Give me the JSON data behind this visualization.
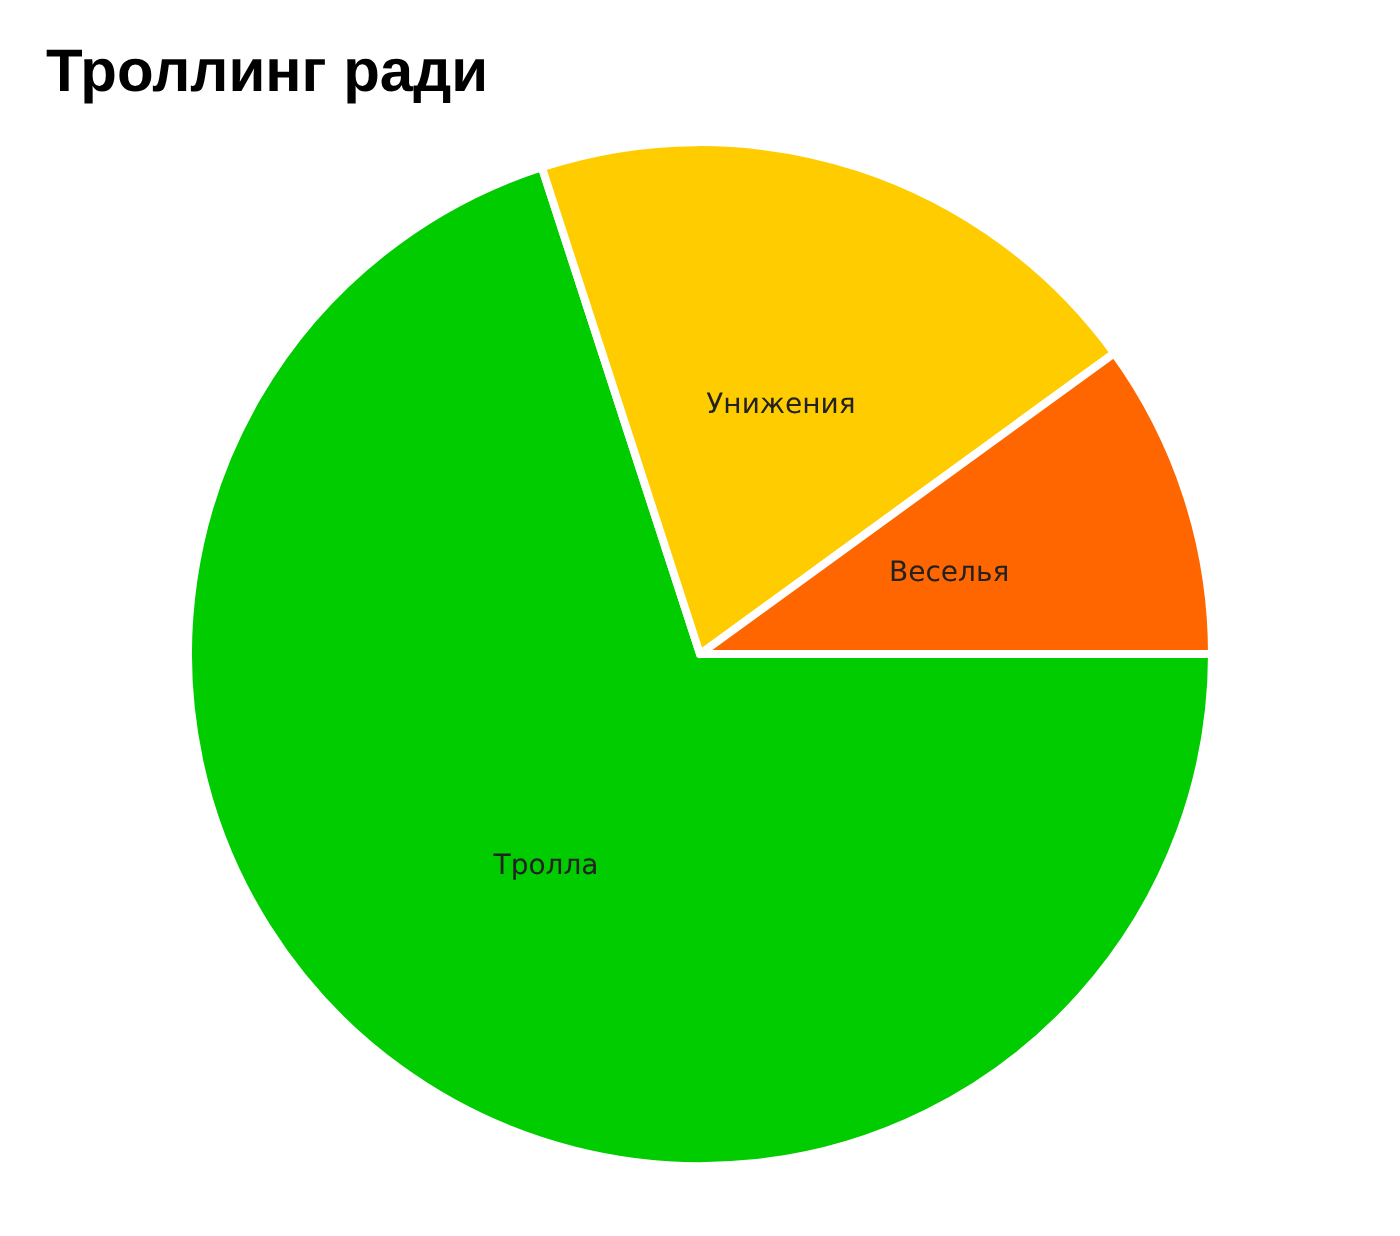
{
  "chart_data": {
    "type": "pie",
    "title": "Троллинг ради",
    "categories": [
      "Тролла",
      "Унижения",
      "Веселья"
    ],
    "values": [
      70,
      20,
      10
    ],
    "colors": [
      "#00cc00",
      "#ffcc00",
      "#ff6600"
    ]
  }
}
